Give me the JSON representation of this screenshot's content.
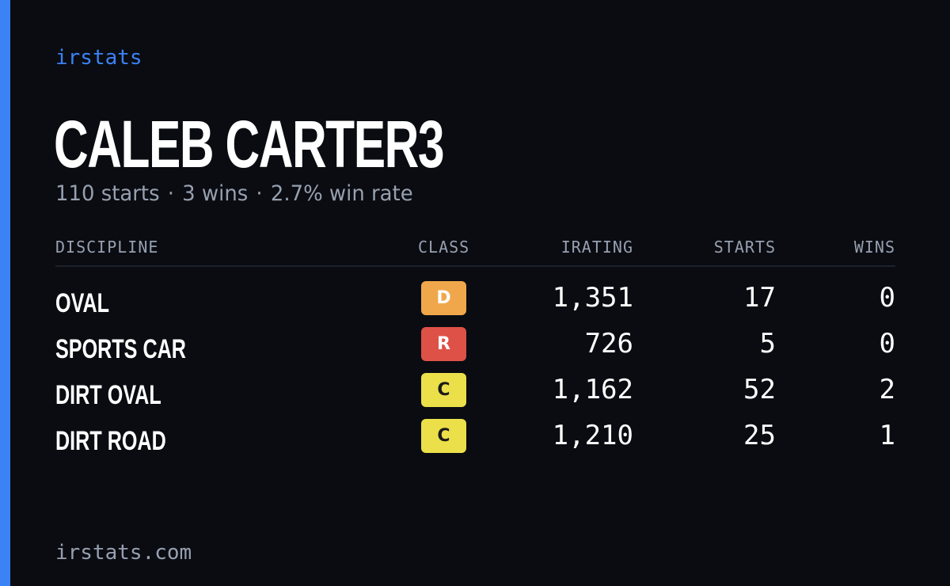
{
  "colors": {
    "accent": "#3b82f6",
    "brand_text": "#3b82f6",
    "muted_text": "#97a0af"
  },
  "brand": "irstats",
  "player": {
    "name": "CALEB CARTER3",
    "starts_text": "110 starts",
    "wins_text": "3 wins",
    "win_rate_text": "2.7% win rate",
    "separator": "·"
  },
  "table": {
    "headers": {
      "discipline": "DISCIPLINE",
      "class": "CLASS",
      "irating": "IRATING",
      "starts": "STARTS",
      "wins": "WINS"
    },
    "rows": [
      {
        "discipline": "OVAL",
        "class": "D",
        "class_color": "#f0a74b",
        "class_text_dark": false,
        "irating": "1,351",
        "starts": "17",
        "wins": "0"
      },
      {
        "discipline": "SPORTS CAR",
        "class": "R",
        "class_color": "#de5147",
        "class_text_dark": false,
        "irating": "726",
        "starts": "5",
        "wins": "0"
      },
      {
        "discipline": "DIRT OVAL",
        "class": "C",
        "class_color": "#ece04a",
        "class_text_dark": true,
        "irating": "1,162",
        "starts": "52",
        "wins": "2"
      },
      {
        "discipline": "DIRT ROAD",
        "class": "C",
        "class_color": "#ece04a",
        "class_text_dark": true,
        "irating": "1,210",
        "starts": "25",
        "wins": "1"
      }
    ]
  },
  "footer": "irstats.com"
}
